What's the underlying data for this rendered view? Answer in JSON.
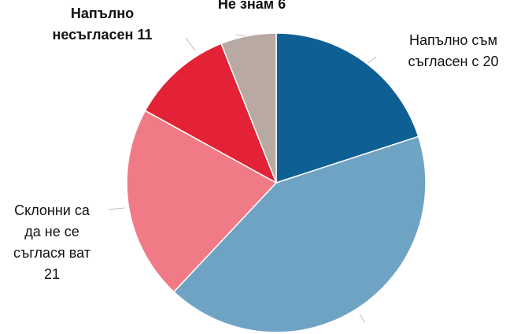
{
  "chart_data": {
    "type": "pie",
    "categories": [
      "Напълно съм съгласен с",
      null,
      "Склонни са да не се съглася ват",
      "Напълно несъгласен",
      "Не знам"
    ],
    "values": [
      20,
      42,
      21,
      11,
      6
    ],
    "colors": [
      "#0d5f94",
      "#6fa3c4",
      "#f07b87",
      "#e32236",
      "#b9a9a3"
    ]
  }
}
